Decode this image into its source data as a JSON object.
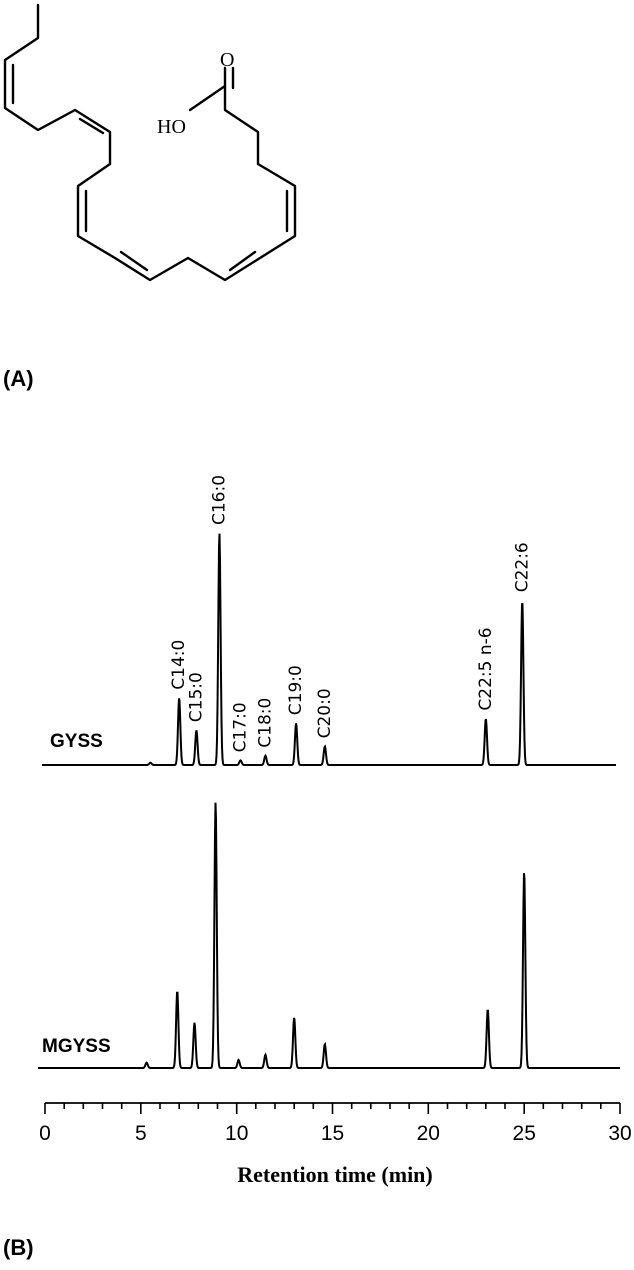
{
  "panels": {
    "a_label": "(A)",
    "b_label": "(B)"
  },
  "molecule": {
    "name": "docosahexaenoic acid (C22:6)",
    "labels": {
      "carbonyl_oxygen": "O",
      "hydroxyl": "HO"
    }
  },
  "chart_data": {
    "type": "line",
    "xlabel": "Retention time (min)",
    "ylabel": "",
    "xlim": [
      0,
      30
    ],
    "x_ticks": [
      0,
      5,
      10,
      15,
      20,
      25,
      30
    ],
    "x_minor_tick_step": 1,
    "grid": false,
    "series": [
      {
        "name": "GYSS",
        "peaks": [
          {
            "label": "",
            "rt": 5.5,
            "height": 0.01
          },
          {
            "label": "C14:0",
            "rt": 7.0,
            "height": 0.29
          },
          {
            "label": "C15:0",
            "rt": 7.9,
            "height": 0.15
          },
          {
            "label": "C16:0",
            "rt": 9.1,
            "height": 1.0
          },
          {
            "label": "C17:0",
            "rt": 10.2,
            "height": 0.02
          },
          {
            "label": "C18:0",
            "rt": 11.5,
            "height": 0.04
          },
          {
            "label": "C19:0",
            "rt": 13.1,
            "height": 0.18
          },
          {
            "label": "C20:0",
            "rt": 14.6,
            "height": 0.08
          },
          {
            "label": "C22:5 n-6",
            "rt": 23.0,
            "height": 0.2
          },
          {
            "label": "C22:6",
            "rt": 24.9,
            "height": 0.71
          }
        ]
      },
      {
        "name": "MGYSS",
        "peaks": [
          {
            "label": "",
            "rt": 5.3,
            "height": 0.02
          },
          {
            "label": "",
            "rt": 6.9,
            "height": 0.29
          },
          {
            "label": "",
            "rt": 7.8,
            "height": 0.17
          },
          {
            "label": "",
            "rt": 8.9,
            "height": 1.0
          },
          {
            "label": "",
            "rt": 10.1,
            "height": 0.03
          },
          {
            "label": "",
            "rt": 11.5,
            "height": 0.05
          },
          {
            "label": "",
            "rt": 13.0,
            "height": 0.19
          },
          {
            "label": "",
            "rt": 14.6,
            "height": 0.09
          },
          {
            "label": "",
            "rt": 23.1,
            "height": 0.22
          },
          {
            "label": "",
            "rt": 25.0,
            "height": 0.74
          }
        ]
      }
    ]
  }
}
